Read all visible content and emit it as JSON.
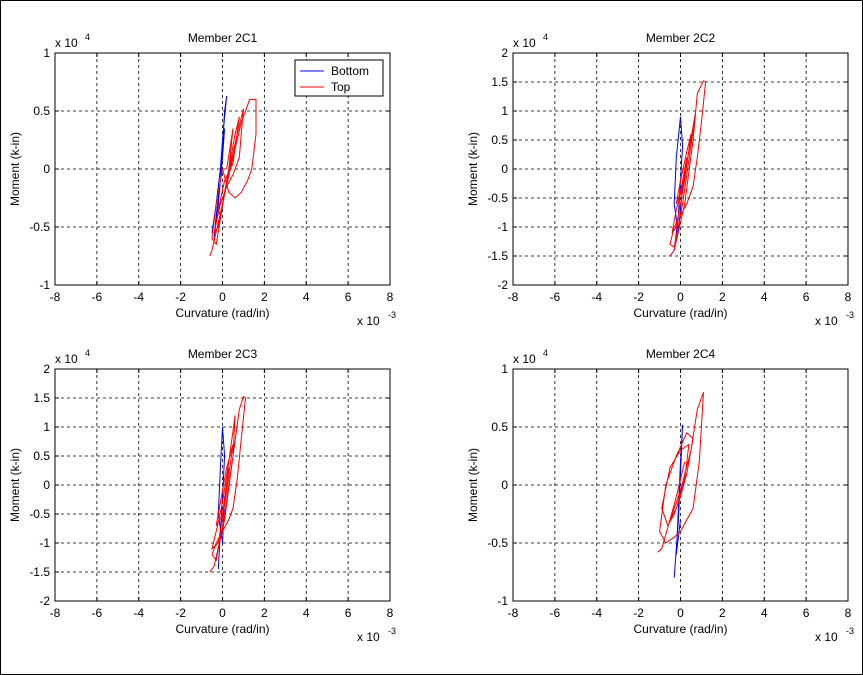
{
  "colors": {
    "bottom": "#0000ff",
    "top": "#ff0000",
    "axes": "#000000",
    "grid": "#000000"
  },
  "chart_data": [
    {
      "type": "line",
      "title": "Member 2C1",
      "xlabel": "Curvature (rad/in)",
      "ylabel": "Moment (k-in)",
      "x_multiplier": "x 10",
      "x_multiplier_exp": "-3",
      "y_multiplier": "x 10",
      "y_multiplier_exp": "4",
      "xlim": [
        -8,
        8
      ],
      "ylim": [
        -1,
        1
      ],
      "xticks": [
        "-8",
        "-6",
        "-4",
        "-2",
        "0",
        "2",
        "4",
        "6",
        "8"
      ],
      "yticks": [
        "-1",
        "-0.5",
        "0",
        "0.5",
        "1"
      ],
      "grid": true,
      "legend": {
        "position": "top-right",
        "entries": [
          "Bottom",
          "Top"
        ]
      },
      "series": [
        {
          "name": "Bottom",
          "color": "#0000ff",
          "x": [
            -0.5,
            -0.3,
            -0.1,
            0.0,
            0.1,
            0.2,
            0.1,
            0.0,
            -0.1,
            -0.3,
            -0.4,
            -0.2,
            0.0,
            0.1
          ],
          "y": [
            -0.55,
            -0.3,
            0.0,
            0.25,
            0.45,
            0.63,
            0.5,
            0.2,
            -0.1,
            -0.4,
            -0.6,
            -0.3,
            0.1,
            0.35
          ]
        },
        {
          "name": "Top",
          "color": "#ff0000",
          "x": [
            -0.6,
            -0.5,
            0.0,
            0.5,
            0.9,
            1.3,
            1.6,
            1.6,
            1.4,
            1.2,
            0.9,
            0.6,
            0.3,
            0.0,
            -0.3,
            -0.5,
            -0.3,
            0.2,
            0.7,
            1.0,
            0.8,
            0.5,
            0.2,
            -0.1,
            -0.4,
            -0.2,
            0.2,
            0.6,
            0.8,
            0.5,
            0.1,
            -0.2,
            -0.1,
            0.3,
            0.5,
            0.2
          ],
          "y": [
            -0.75,
            -0.7,
            -0.3,
            0.1,
            0.4,
            0.6,
            0.6,
            0.3,
            0.0,
            -0.1,
            -0.2,
            -0.25,
            -0.2,
            0.0,
            -0.3,
            -0.6,
            -0.65,
            -0.1,
            0.3,
            0.52,
            0.1,
            -0.05,
            -0.15,
            -0.3,
            -0.55,
            -0.5,
            -0.1,
            0.3,
            0.45,
            0.05,
            -0.1,
            -0.35,
            -0.4,
            0.0,
            0.35,
            0.0
          ]
        }
      ]
    },
    {
      "type": "line",
      "title": "Member 2C2",
      "xlabel": "Curvature (rad/in)",
      "ylabel": "Moment (k-in)",
      "x_multiplier": "x 10",
      "x_multiplier_exp": "-3",
      "y_multiplier": "x 10",
      "y_multiplier_exp": "4",
      "xlim": [
        -8,
        8
      ],
      "ylim": [
        -2,
        2
      ],
      "xticks": [
        "-8",
        "-6",
        "-4",
        "-2",
        "0",
        "2",
        "4",
        "6",
        "8"
      ],
      "yticks": [
        "-2",
        "-1.5",
        "-1",
        "-0.5",
        "0",
        "0.5",
        "1",
        "1.5",
        "2"
      ],
      "grid": true,
      "series": [
        {
          "name": "Bottom",
          "color": "#0000ff",
          "x": [
            -0.3,
            -0.1,
            0.0,
            0.1,
            0.0,
            -0.2,
            -0.3,
            -0.1,
            0.1
          ],
          "y": [
            -1.4,
            -0.8,
            -0.2,
            0.4,
            0.9,
            0.2,
            -0.6,
            -1.1,
            -0.3
          ]
        },
        {
          "name": "Top",
          "color": "#ff0000",
          "x": [
            -0.5,
            -0.3,
            0.2,
            0.6,
            0.8,
            1.1,
            1.2,
            1.0,
            0.8,
            0.6,
            0.3,
            0.0,
            -0.3,
            -0.5,
            -0.3,
            0.1,
            0.5,
            0.7,
            0.4,
            0.1,
            -0.2,
            -0.4,
            -0.2,
            0.2,
            0.5,
            0.3,
            0.0,
            -0.2,
            0.0,
            0.3
          ],
          "y": [
            -1.5,
            -1.4,
            -0.6,
            0.5,
            1.3,
            1.52,
            1.5,
            0.8,
            0.2,
            -0.3,
            -0.6,
            -0.8,
            -1.0,
            -1.3,
            -1.35,
            -0.6,
            0.4,
            0.95,
            0.3,
            -0.3,
            -0.7,
            -1.1,
            -1.0,
            -0.2,
            0.6,
            0.3,
            -0.2,
            -0.6,
            -0.4,
            0.2
          ]
        }
      ]
    },
    {
      "type": "line",
      "title": "Member 2C3",
      "xlabel": "Curvature (rad/in)",
      "ylabel": "Moment (k-in)",
      "x_multiplier": "x 10",
      "x_multiplier_exp": "-3",
      "y_multiplier": "x 10",
      "y_multiplier_exp": "4",
      "xlim": [
        -8,
        8
      ],
      "ylim": [
        -2,
        2
      ],
      "xticks": [
        "-8",
        "-6",
        "-4",
        "-2",
        "0",
        "2",
        "4",
        "6",
        "8"
      ],
      "yticks": [
        "-2",
        "-1.5",
        "-1",
        "-0.5",
        "0",
        "0.5",
        "1",
        "1.5",
        "2"
      ],
      "grid": true,
      "series": [
        {
          "name": "Bottom",
          "color": "#0000ff",
          "x": [
            -0.2,
            -0.1,
            0.0,
            0.1,
            0.0,
            -0.1,
            -0.2,
            0.0,
            0.1
          ],
          "y": [
            -1.45,
            -0.8,
            -0.2,
            0.5,
            1.0,
            0.3,
            -0.5,
            -1.0,
            -0.2
          ]
        },
        {
          "name": "Top",
          "color": "#ff0000",
          "x": [
            -0.6,
            -0.4,
            0.1,
            0.5,
            0.8,
            1.0,
            1.1,
            0.9,
            0.7,
            0.5,
            0.3,
            0.0,
            -0.3,
            -0.5,
            -0.3,
            0.1,
            0.5,
            0.6,
            0.3,
            0.0,
            -0.3,
            -0.5,
            -0.2,
            0.2,
            0.5,
            0.2,
            -0.1,
            -0.3,
            0.0,
            0.3
          ],
          "y": [
            -1.5,
            -1.4,
            -0.6,
            0.5,
            1.3,
            1.52,
            1.5,
            0.8,
            0.1,
            -0.4,
            -0.6,
            -0.8,
            -1.0,
            -1.2,
            -1.3,
            -0.5,
            0.5,
            1.2,
            0.4,
            -0.3,
            -0.8,
            -1.1,
            -1.0,
            -0.1,
            0.7,
            0.3,
            -0.3,
            -0.7,
            -0.5,
            0.3
          ]
        }
      ]
    },
    {
      "type": "line",
      "title": "Member 2C4",
      "xlabel": "Curvature (rad/in)",
      "ylabel": "Moment (k-in)",
      "x_multiplier": "x 10",
      "x_multiplier_exp": "-3",
      "y_multiplier": "x 10",
      "y_multiplier_exp": "4",
      "xlim": [
        -8,
        8
      ],
      "ylim": [
        -1,
        1
      ],
      "xticks": [
        "-8",
        "-6",
        "-4",
        "-2",
        "0",
        "2",
        "4",
        "6",
        "8"
      ],
      "yticks": [
        "-1",
        "-0.5",
        "0",
        "0.5",
        "1"
      ],
      "grid": true,
      "series": [
        {
          "name": "Bottom",
          "color": "#0000ff",
          "x": [
            -0.3,
            -0.2,
            -0.1,
            0.0,
            0.1,
            0.0,
            -0.1,
            -0.2,
            0.0
          ],
          "y": [
            -0.8,
            -0.55,
            -0.3,
            0.1,
            0.52,
            0.2,
            -0.2,
            -0.6,
            -0.3
          ]
        },
        {
          "name": "Top",
          "color": "#ff0000",
          "x": [
            -1.1,
            -0.9,
            -0.5,
            0.0,
            0.5,
            0.8,
            1.1,
            1.1,
            0.9,
            0.6,
            0.3,
            0.0,
            -0.3,
            -0.7,
            -1.0,
            -0.7,
            -0.2,
            0.3,
            0.6,
            0.3,
            0.0,
            -0.3,
            -0.6,
            -0.9,
            -0.5,
            0.0,
            0.4,
            0.2,
            -0.2,
            -0.5,
            -0.2,
            0.2
          ],
          "y": [
            -0.58,
            -0.55,
            -0.3,
            -0.05,
            0.3,
            0.65,
            0.8,
            0.8,
            0.2,
            -0.2,
            -0.3,
            -0.4,
            -0.45,
            -0.5,
            -0.4,
            0.0,
            0.25,
            0.45,
            0.4,
            0.1,
            -0.1,
            -0.25,
            -0.35,
            -0.2,
            0.15,
            0.3,
            0.35,
            0.05,
            -0.2,
            -0.3,
            -0.1,
            0.2
          ]
        }
      ]
    }
  ]
}
